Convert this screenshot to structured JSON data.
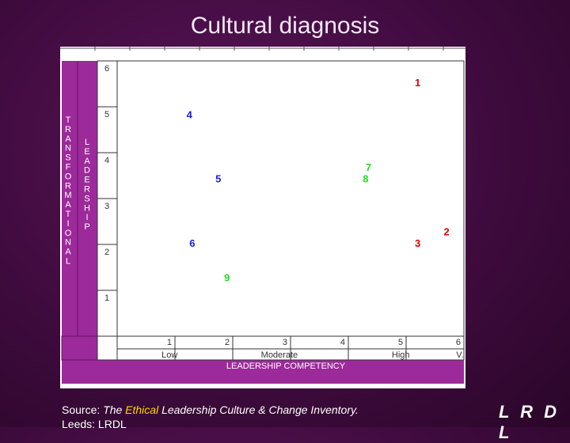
{
  "slide": {
    "title": "Cultural diagnosis",
    "source_prefix": "Source: ",
    "source_title_part1": "The ",
    "source_title_highlight": "Ethical",
    "source_title_part2": " Leadership Culture & Change Inventory.",
    "source_line2": "Leeds: LRDL",
    "logo": "L R D L"
  },
  "chart_data": {
    "type": "scatter",
    "xlabel": "LEADERSHIP COMPETENCY",
    "ylabel_outer": "TRANSFORMATIONAL",
    "ylabel_inner": "LEADERSHIP",
    "xlim": [
      0,
      6
    ],
    "ylim": [
      0,
      6
    ],
    "x_ticks": [
      "1",
      "2",
      "3",
      "4",
      "5",
      "6"
    ],
    "y_ticks": [
      "1",
      "2",
      "3",
      "4",
      "5",
      "6"
    ],
    "x_category_labels": [
      "Low",
      "Moderate",
      "High",
      "V. High"
    ],
    "grid": false,
    "points": [
      {
        "label": "1",
        "x": 5.2,
        "y": 5.45,
        "color": "#e00000"
      },
      {
        "label": "2",
        "x": 5.7,
        "y": 2.2,
        "color": "#e00000"
      },
      {
        "label": "3",
        "x": 5.2,
        "y": 1.95,
        "color": "#e00000"
      },
      {
        "label": "4",
        "x": 1.25,
        "y": 4.75,
        "color": "#1a1ad8"
      },
      {
        "label": "5",
        "x": 1.75,
        "y": 3.35,
        "color": "#1a1ad8"
      },
      {
        "label": "6",
        "x": 1.3,
        "y": 1.95,
        "color": "#1a1ad8"
      },
      {
        "label": "7",
        "x": 4.35,
        "y": 3.6,
        "color": "#22dd22"
      },
      {
        "label": "8",
        "x": 4.3,
        "y": 3.35,
        "color": "#22dd22"
      },
      {
        "label": "9",
        "x": 1.9,
        "y": 1.2,
        "color": "#22dd22"
      }
    ]
  },
  "colors": {
    "background": "#4a0f49",
    "chart_bg": "#ffffff",
    "side_panel": "#9c2a9a",
    "axis_text": "#ffffff",
    "highlight": "#ffd700"
  }
}
